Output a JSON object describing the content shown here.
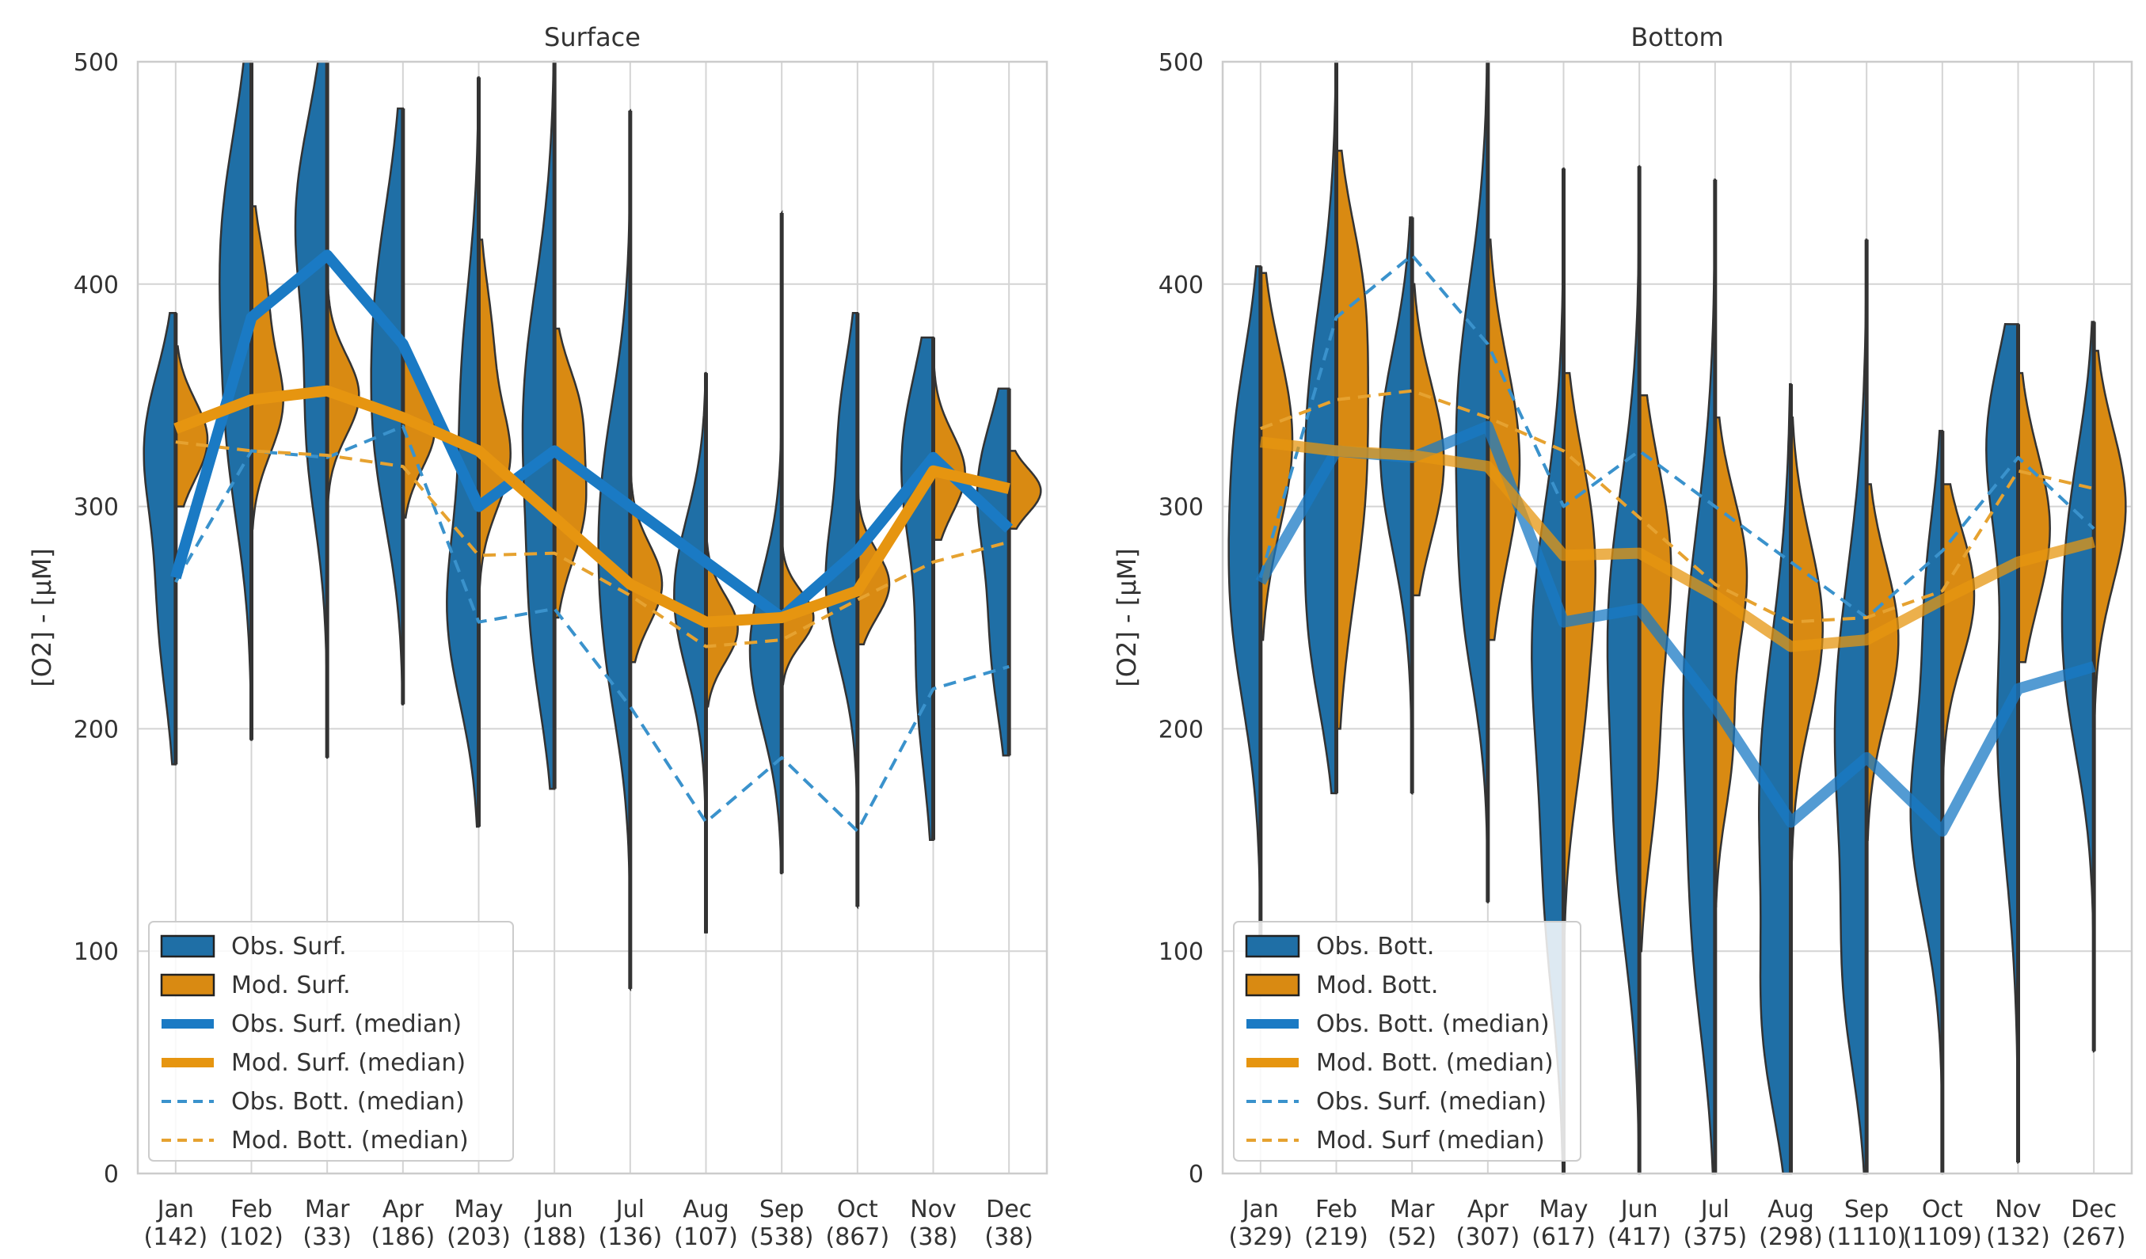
{
  "figure": {
    "colors": {
      "obs": "#1f6fa6",
      "mod": "#d98a12",
      "obs_line": "#1a7ac4",
      "mod_line": "#e69510",
      "frame": "#cccccc",
      "grid": "#d4d4d4"
    }
  },
  "chart_data": [
    {
      "type": "violin",
      "title": "Surface",
      "ylabel": "[O2] - [µM]",
      "xlabel": "",
      "ylim": [
        0,
        500
      ],
      "yticks": [
        "0",
        "100",
        "200",
        "300",
        "400",
        "500"
      ],
      "categories": [
        "Jan",
        "Feb",
        "Mar",
        "Apr",
        "May",
        "Jun",
        "Jul",
        "Aug",
        "Sep",
        "Oct",
        "Nov",
        "Dec"
      ],
      "counts": [
        "(142)",
        "(102)",
        "(33)",
        "(186)",
        "(203)",
        "(188)",
        "(136)",
        "(107)",
        "(538)",
        "(867)",
        "(38)",
        "(38)"
      ],
      "obs_violins": [
        {
          "min": 184,
          "max": 387,
          "modes": [
            [
              330,
              32,
              1.0
            ],
            [
              255,
              40,
              0.6
            ]
          ]
        },
        {
          "min": 195,
          "max": 500,
          "modes": [
            [
              420,
              50,
              1.0
            ],
            [
              330,
              45,
              0.7
            ]
          ]
        },
        {
          "min": 187,
          "max": 500,
          "modes": [
            [
              430,
              45,
              1.0
            ],
            [
              330,
              40,
              0.6
            ]
          ]
        },
        {
          "min": 211,
          "max": 479,
          "modes": [
            [
              390,
              50,
              1.0
            ],
            [
              320,
              40,
              0.7
            ]
          ]
        },
        {
          "min": 156,
          "max": 493,
          "modes": [
            [
              250,
              40,
              1.0
            ],
            [
              350,
              50,
              0.6
            ]
          ]
        },
        {
          "min": 173,
          "max": 500,
          "modes": [
            [
              340,
              60,
              1.0
            ],
            [
              240,
              40,
              0.5
            ]
          ]
        },
        {
          "min": 83,
          "max": 478,
          "modes": [
            [
              300,
              50,
              1.0
            ],
            [
              230,
              40,
              0.5
            ]
          ]
        },
        {
          "min": 108,
          "max": 360,
          "modes": [
            [
              260,
              35,
              1.0
            ]
          ]
        },
        {
          "min": 135,
          "max": 432,
          "modes": [
            [
              235,
              35,
              1.0
            ]
          ]
        },
        {
          "min": 120,
          "max": 387,
          "modes": [
            [
              265,
              35,
              1.0
            ],
            [
              340,
              30,
              0.5
            ]
          ]
        },
        {
          "min": 150,
          "max": 376,
          "modes": [
            [
              320,
              40,
              1.0
            ],
            [
              220,
              40,
              0.5
            ]
          ]
        },
        {
          "min": 188,
          "max": 353,
          "modes": [
            [
              310,
              30,
              1.0
            ],
            [
              240,
              35,
              0.6
            ]
          ]
        }
      ],
      "mod_violins": [
        {
          "min": 300,
          "max": 372,
          "modes": [
            [
              330,
              18,
              1.0
            ]
          ]
        },
        {
          "min": 290,
          "max": 435,
          "modes": [
            [
              345,
              22,
              1.0
            ],
            [
              395,
              25,
              0.5
            ]
          ]
        },
        {
          "min": 300,
          "max": 405,
          "modes": [
            [
              350,
              18,
              1.0
            ]
          ]
        },
        {
          "min": 295,
          "max": 370,
          "modes": [
            [
              335,
              18,
              1.0
            ]
          ]
        },
        {
          "min": 260,
          "max": 420,
          "modes": [
            [
              320,
              22,
              1.0
            ],
            [
              370,
              30,
              0.5
            ]
          ]
        },
        {
          "min": 250,
          "max": 380,
          "modes": [
            [
              300,
              25,
              1.0
            ],
            [
              345,
              20,
              0.7
            ]
          ]
        },
        {
          "min": 230,
          "max": 340,
          "modes": [
            [
              265,
              18,
              1.0
            ]
          ]
        },
        {
          "min": 210,
          "max": 310,
          "modes": [
            [
              245,
              15,
              1.0
            ]
          ]
        },
        {
          "min": 220,
          "max": 300,
          "modes": [
            [
              250,
              12,
              1.0
            ]
          ]
        },
        {
          "min": 238,
          "max": 345,
          "modes": [
            [
              265,
              15,
              1.0
            ]
          ]
        },
        {
          "min": 285,
          "max": 372,
          "modes": [
            [
              315,
              18,
              1.0
            ]
          ]
        },
        {
          "min": 290,
          "max": 325,
          "modes": [
            [
              307,
              10,
              1.0
            ]
          ]
        }
      ],
      "series": [
        {
          "name": "Obs. Surf. (median)",
          "style": "obs_thick",
          "values": [
            268,
            385,
            413,
            373,
            300,
            325,
            300,
            275,
            250,
            280,
            322,
            290
          ]
        },
        {
          "name": "Mod. Surf. (median)",
          "style": "mod_thick",
          "values": [
            335,
            348,
            352,
            340,
            325,
            295,
            265,
            248,
            250,
            262,
            316,
            308
          ]
        },
        {
          "name": "Obs. Bott. (median)",
          "style": "obs_dash",
          "values": [
            266,
            325,
            322,
            336,
            248,
            254,
            210,
            158,
            187,
            154,
            218,
            228
          ]
        },
        {
          "name": "Mod. Bott. (median)",
          "style": "mod_dash",
          "values": [
            329,
            325,
            323,
            318,
            278,
            279,
            260,
            237,
            240,
            258,
            275,
            284
          ]
        }
      ],
      "legend": {
        "position": "lower-left",
        "entries": [
          {
            "label": "Obs. Surf.",
            "kind": "patch_obs"
          },
          {
            "label": "Mod. Surf.",
            "kind": "patch_mod"
          },
          {
            "label": "Obs. Surf. (median)",
            "kind": "obs_thick"
          },
          {
            "label": "Mod. Surf. (median)",
            "kind": "mod_thick"
          },
          {
            "label": "Obs. Bott. (median)",
            "kind": "obs_dash"
          },
          {
            "label": "Mod. Bott. (median)",
            "kind": "mod_dash"
          }
        ]
      }
    },
    {
      "type": "violin",
      "title": "Bottom",
      "ylabel": "[O2] - [µM]",
      "xlabel": "",
      "ylim": [
        0,
        500
      ],
      "yticks": [
        "0",
        "100",
        "200",
        "300",
        "400",
        "500"
      ],
      "categories": [
        "Jan",
        "Feb",
        "Mar",
        "Apr",
        "May",
        "Jun",
        "Jul",
        "Aug",
        "Sep",
        "Oct",
        "Nov",
        "Dec"
      ],
      "counts": [
        "(329)",
        "(219)",
        "(52)",
        "(307)",
        "(617)",
        "(417)",
        "(375)",
        "(298)",
        "(1110)",
        "(1109)",
        "(132)",
        "(267)"
      ],
      "obs_violins": [
        {
          "min": 100,
          "max": 408,
          "modes": [
            [
              260,
              50,
              1.0
            ],
            [
              340,
              40,
              0.6
            ]
          ]
        },
        {
          "min": 171,
          "max": 500,
          "modes": [
            [
              330,
              60,
              1.0
            ],
            [
              240,
              40,
              0.6
            ]
          ]
        },
        {
          "min": 171,
          "max": 430,
          "modes": [
            [
              325,
              45,
              1.0
            ]
          ]
        },
        {
          "min": 122,
          "max": 500,
          "modes": [
            [
              340,
              60,
              1.0
            ],
            [
              250,
              40,
              0.5
            ]
          ]
        },
        {
          "min": 0,
          "max": 452,
          "modes": [
            [
              240,
              60,
              1.0
            ],
            [
              120,
              50,
              0.5
            ]
          ]
        },
        {
          "min": 0,
          "max": 453,
          "modes": [
            [
              250,
              60,
              1.0
            ],
            [
              140,
              50,
              0.6
            ]
          ]
        },
        {
          "min": 0,
          "max": 447,
          "modes": [
            [
              220,
              70,
              1.0
            ],
            [
              100,
              50,
              0.5
            ]
          ]
        },
        {
          "min": 0,
          "max": 355,
          "modes": [
            [
              170,
              70,
              1.0
            ],
            [
              60,
              40,
              0.6
            ]
          ]
        },
        {
          "min": 0,
          "max": 420,
          "modes": [
            [
              200,
              70,
              1.0
            ],
            [
              80,
              40,
              0.5
            ]
          ]
        },
        {
          "min": 0,
          "max": 334,
          "modes": [
            [
              160,
              45,
              1.0
            ],
            [
              260,
              40,
              0.5
            ]
          ]
        },
        {
          "min": 5,
          "max": 382,
          "modes": [
            [
              330,
              40,
              1.0
            ],
            [
              200,
              60,
              0.7
            ]
          ]
        },
        {
          "min": 55,
          "max": 383,
          "modes": [
            [
              230,
              45,
              1.0
            ],
            [
              300,
              40,
              0.6
            ]
          ]
        }
      ],
      "mod_violins": [
        {
          "min": 240,
          "max": 405,
          "modes": [
            [
              330,
              40,
              1.0
            ]
          ]
        },
        {
          "min": 200,
          "max": 460,
          "modes": [
            [
              320,
              60,
              1.0
            ],
            [
              400,
              35,
              0.5
            ]
          ]
        },
        {
          "min": 260,
          "max": 400,
          "modes": [
            [
              320,
              35,
              1.0
            ]
          ]
        },
        {
          "min": 240,
          "max": 420,
          "modes": [
            [
              320,
              45,
              1.0
            ]
          ]
        },
        {
          "min": 100,
          "max": 360,
          "modes": [
            [
              280,
              45,
              1.0
            ],
            [
              200,
              40,
              0.5
            ]
          ]
        },
        {
          "min": 100,
          "max": 350,
          "modes": [
            [
              275,
              45,
              1.0
            ],
            [
              180,
              40,
              0.5
            ]
          ]
        },
        {
          "min": 120,
          "max": 340,
          "modes": [
            [
              270,
              35,
              1.0
            ],
            [
              190,
              30,
              0.5
            ]
          ]
        },
        {
          "min": 120,
          "max": 340,
          "modes": [
            [
              245,
              40,
              1.0
            ]
          ]
        },
        {
          "min": 150,
          "max": 310,
          "modes": [
            [
              240,
              35,
              1.0
            ]
          ]
        },
        {
          "min": 150,
          "max": 310,
          "modes": [
            [
              260,
              30,
              1.0
            ]
          ]
        },
        {
          "min": 230,
          "max": 360,
          "modes": [
            [
              290,
              35,
              1.0
            ]
          ]
        },
        {
          "min": 200,
          "max": 370,
          "modes": [
            [
              300,
              35,
              1.0
            ]
          ]
        }
      ],
      "series": [
        {
          "name": "Obs. Bott. (median)",
          "style": "obs_thick",
          "values": [
            266,
            325,
            322,
            336,
            248,
            254,
            210,
            158,
            187,
            154,
            218,
            228
          ]
        },
        {
          "name": "Mod. Bott. (median)",
          "style": "mod_thick",
          "values": [
            329,
            325,
            323,
            318,
            278,
            279,
            260,
            237,
            240,
            258,
            275,
            284
          ]
        },
        {
          "name": "Obs. Surf. (median)",
          "style": "obs_dash",
          "values": [
            268,
            385,
            413,
            373,
            300,
            325,
            300,
            275,
            250,
            280,
            322,
            290
          ]
        },
        {
          "name": "Mod. Surf (median)",
          "style": "mod_dash",
          "values": [
            335,
            348,
            352,
            340,
            325,
            295,
            265,
            248,
            250,
            262,
            316,
            308
          ]
        }
      ],
      "legend": {
        "position": "lower-left",
        "entries": [
          {
            "label": "Obs. Bott.",
            "kind": "patch_obs"
          },
          {
            "label": "Mod. Bott.",
            "kind": "patch_mod"
          },
          {
            "label": "Obs. Bott. (median)",
            "kind": "obs_thick"
          },
          {
            "label": "Mod. Bott. (median)",
            "kind": "mod_thick"
          },
          {
            "label": "Obs. Surf. (median)",
            "kind": "obs_dash"
          },
          {
            "label": "Mod. Surf (median)",
            "kind": "mod_dash"
          }
        ]
      }
    }
  ]
}
